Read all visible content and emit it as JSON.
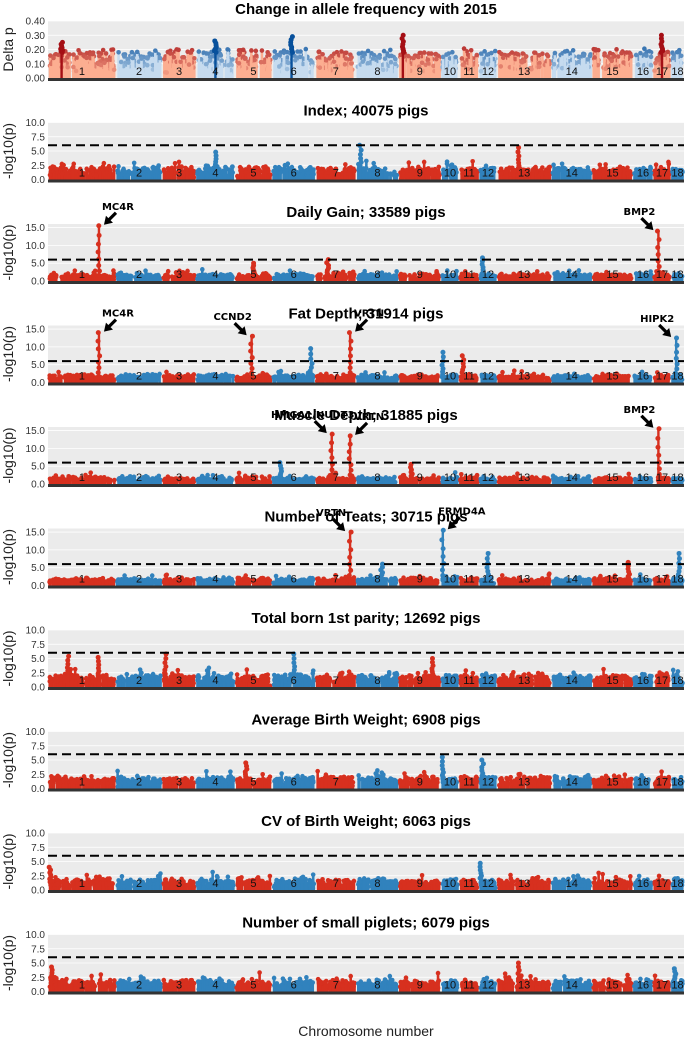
{
  "chart_data": [
    {
      "type": "manhattan",
      "title": "Change in allele frequency with 2015",
      "ylabel": "Delta p",
      "ylim": [
        0,
        0.4
      ],
      "yticks": [
        "0.00",
        "0.10",
        "0.20",
        "0.30",
        "0.40"
      ],
      "ytick_values": [
        0,
        0.1,
        0.2,
        0.3,
        0.4
      ],
      "base": 0.18,
      "spread": 0.06,
      "threshold": null,
      "style": "gradient",
      "peaks": [
        {
          "chr": 1,
          "pos": 0.2,
          "value": 0.25
        },
        {
          "chr": 4,
          "pos": 0.5,
          "value": 0.26
        },
        {
          "chr": 6,
          "pos": 0.45,
          "value": 0.29
        },
        {
          "chr": 9,
          "pos": 0.1,
          "value": 0.3
        },
        {
          "chr": 17,
          "pos": 0.5,
          "value": 0.3
        }
      ],
      "annotations": []
    },
    {
      "type": "manhattan",
      "title": "Index; 40075 pigs",
      "ylabel": "-log10(p)",
      "ylim": [
        0,
        10
      ],
      "yticks": [
        "0.0",
        "2.5",
        "5.0",
        "7.5",
        "10.0"
      ],
      "ytick_values": [
        0,
        2.5,
        5,
        7.5,
        10
      ],
      "base": 1.6,
      "spread": 1.5,
      "threshold": 6.0,
      "style": "plain",
      "peaks": [
        {
          "chr": 4,
          "pos": 0.5,
          "value": 4.8
        },
        {
          "chr": 8,
          "pos": 0.1,
          "value": 6.0
        },
        {
          "chr": 13,
          "pos": 0.4,
          "value": 5.6
        }
      ],
      "annotations": []
    },
    {
      "type": "manhattan",
      "title": "Daily Gain; 33589 pigs",
      "ylabel": "-log10(p)",
      "ylim": [
        0,
        16
      ],
      "yticks": [
        "0.0",
        "5.0",
        "10.0",
        "15.0"
      ],
      "ytick_values": [
        0,
        5,
        10,
        15
      ],
      "base": 1.5,
      "spread": 1.6,
      "threshold": 6.0,
      "style": "plain",
      "peaks": [
        {
          "chr": 1,
          "pos": 0.75,
          "value": 15.5
        },
        {
          "chr": 17,
          "pos": 0.3,
          "value": 14.0
        },
        {
          "chr": 7,
          "pos": 0.3,
          "value": 6.0
        },
        {
          "chr": 5,
          "pos": 0.5,
          "value": 5.0
        },
        {
          "chr": 12,
          "pos": 0.2,
          "value": 6.5
        }
      ],
      "annotations": [
        {
          "label": "MC4R",
          "chr": 1,
          "pos": 0.75,
          "value": 15.5,
          "dir": "right"
        },
        {
          "label": "BMP2",
          "chr": 17,
          "pos": 0.3,
          "value": 14.0,
          "dir": "left"
        }
      ]
    },
    {
      "type": "manhattan",
      "title": "Fat Depth; 31914 pigs",
      "ylabel": "-log10(p)",
      "ylim": [
        0,
        16
      ],
      "yticks": [
        "0.0",
        "5.0",
        "10.0",
        "15.0"
      ],
      "ytick_values": [
        0,
        5,
        10,
        15
      ],
      "base": 1.6,
      "spread": 1.7,
      "threshold": 6.0,
      "style": "plain",
      "peaks": [
        {
          "chr": 1,
          "pos": 0.75,
          "value": 14.0
        },
        {
          "chr": 5,
          "pos": 0.45,
          "value": 13.0
        },
        {
          "chr": 7,
          "pos": 0.85,
          "value": 14.0
        },
        {
          "chr": 18,
          "pos": 0.4,
          "value": 12.5
        },
        {
          "chr": 6,
          "pos": 0.9,
          "value": 9.5
        },
        {
          "chr": 10,
          "pos": 0.1,
          "value": 8.5
        },
        {
          "chr": 11,
          "pos": 0.2,
          "value": 7.5
        }
      ],
      "annotations": [
        {
          "label": "MC4R",
          "chr": 1,
          "pos": 0.75,
          "value": 14.0,
          "dir": "right"
        },
        {
          "label": "CCND2",
          "chr": 5,
          "pos": 0.45,
          "value": 13.0,
          "dir": "left"
        },
        {
          "label": "VRTN",
          "chr": 7,
          "pos": 0.85,
          "value": 14.0,
          "dir": "right"
        },
        {
          "label": "HIPK2",
          "chr": 18,
          "pos": 0.4,
          "value": 12.5,
          "dir": "left"
        }
      ]
    },
    {
      "type": "manhattan",
      "title": "Muscle Depth; 31885 pigs",
      "ylabel": "-log10(p)",
      "ylim": [
        0,
        16
      ],
      "yticks": [
        "0.0",
        "5.0",
        "10.0",
        "15.0"
      ],
      "ytick_values": [
        0,
        5,
        10,
        15
      ],
      "base": 1.4,
      "spread": 1.5,
      "threshold": 6.0,
      "style": "plain",
      "peaks": [
        {
          "chr": 7,
          "pos": 0.4,
          "value": 14.0
        },
        {
          "chr": 7,
          "pos": 0.85,
          "value": 13.5
        },
        {
          "chr": 17,
          "pos": 0.3,
          "value": 15.5
        },
        {
          "chr": 6,
          "pos": 0.2,
          "value": 6.0
        },
        {
          "chr": 9,
          "pos": 0.3,
          "value": 5.5
        }
      ],
      "annotations": [
        {
          "label": "HMGA1/NUDT3",
          "chr": 7,
          "pos": 0.4,
          "value": 14.0,
          "dir": "left"
        },
        {
          "label": "VRTN",
          "chr": 7,
          "pos": 0.85,
          "value": 13.5,
          "dir": "right"
        },
        {
          "label": "BMP2",
          "chr": 17,
          "pos": 0.3,
          "value": 15.5,
          "dir": "left"
        }
      ]
    },
    {
      "type": "manhattan",
      "title": "Number of Teats; 30715 pigs",
      "ylabel": "-log10(p)",
      "ylim": [
        0,
        16
      ],
      "yticks": [
        "0.0",
        "5.0",
        "10.0",
        "15.0"
      ],
      "ytick_values": [
        0,
        5,
        10,
        15
      ],
      "base": 1.5,
      "spread": 1.6,
      "threshold": 6.0,
      "style": "plain",
      "peaks": [
        {
          "chr": 7,
          "pos": 0.85,
          "value": 15.0
        },
        {
          "chr": 10,
          "pos": 0.1,
          "value": 15.5
        },
        {
          "chr": 12,
          "pos": 0.5,
          "value": 9.0
        },
        {
          "chr": 18,
          "pos": 0.6,
          "value": 9.0
        },
        {
          "chr": 15,
          "pos": 0.9,
          "value": 6.5
        },
        {
          "chr": 8,
          "pos": 0.6,
          "value": 6.0
        }
      ],
      "annotations": [
        {
          "label": "VRTN",
          "chr": 7,
          "pos": 0.85,
          "value": 15.0,
          "dir": "left"
        },
        {
          "label": "FRMD4A",
          "chr": 10,
          "pos": 0.1,
          "value": 15.5,
          "dir": "right"
        }
      ]
    },
    {
      "type": "manhattan",
      "title": "Total born 1st parity; 12692 pigs",
      "ylabel": "-log10(p)",
      "ylim": [
        0,
        10
      ],
      "yticks": [
        "0.0",
        "2.5",
        "5.0",
        "7.5",
        "10.0"
      ],
      "ytick_values": [
        0,
        2.5,
        5,
        7.5,
        10
      ],
      "base": 1.6,
      "spread": 1.6,
      "threshold": 6.0,
      "style": "plain",
      "peaks": [
        {
          "chr": 1,
          "pos": 0.3,
          "value": 5.4
        },
        {
          "chr": 1,
          "pos": 0.75,
          "value": 5.2
        },
        {
          "chr": 3,
          "pos": 0.1,
          "value": 5.8
        },
        {
          "chr": 6,
          "pos": 0.5,
          "value": 5.8
        },
        {
          "chr": 9,
          "pos": 0.8,
          "value": 5.0
        }
      ],
      "annotations": []
    },
    {
      "type": "manhattan",
      "title": "Average Birth Weight; 6908 pigs",
      "ylabel": "-log10(p)",
      "ylim": [
        0,
        10
      ],
      "yticks": [
        "0.0",
        "2.5",
        "5.0",
        "7.5",
        "10.0"
      ],
      "ytick_values": [
        0,
        2.5,
        5,
        7.5,
        10
      ],
      "base": 1.5,
      "spread": 1.5,
      "threshold": 6.0,
      "style": "plain",
      "peaks": [
        {
          "chr": 5,
          "pos": 0.3,
          "value": 4.5
        },
        {
          "chr": 10,
          "pos": 0.1,
          "value": 5.5
        },
        {
          "chr": 12,
          "pos": 0.2,
          "value": 5.0
        }
      ],
      "annotations": []
    },
    {
      "type": "manhattan",
      "title": "CV of Birth Weight; 6063 pigs",
      "ylabel": "-log10(p)",
      "ylim": [
        0,
        10
      ],
      "yticks": [
        "0.0",
        "2.5",
        "5.0",
        "7.5",
        "10.0"
      ],
      "ytick_values": [
        0,
        2.5,
        5,
        7.5,
        10
      ],
      "base": 1.4,
      "spread": 1.4,
      "threshold": 6.0,
      "style": "plain",
      "peaks": [
        {
          "chr": 1,
          "pos": 0.03,
          "value": 4.0
        },
        {
          "chr": 12,
          "pos": 0.1,
          "value": 4.7
        }
      ],
      "annotations": []
    },
    {
      "type": "manhattan",
      "title": "Number of small piglets; 6079 pigs",
      "ylabel": "-log10(p)",
      "ylim": [
        0,
        10
      ],
      "yticks": [
        "0.0",
        "2.5",
        "5.0",
        "7.5",
        "10.0"
      ],
      "ytick_values": [
        0,
        2.5,
        5,
        7.5,
        10
      ],
      "base": 1.5,
      "spread": 1.5,
      "threshold": 6.0,
      "style": "plain",
      "peaks": [
        {
          "chr": 1,
          "pos": 0.05,
          "value": 4.3
        },
        {
          "chr": 13,
          "pos": 0.4,
          "value": 5.0
        },
        {
          "chr": 18,
          "pos": 0.3,
          "value": 4.0
        }
      ],
      "annotations": []
    }
  ],
  "chromosomes": [
    {
      "label": "1",
      "length": 1.25
    },
    {
      "label": "2",
      "length": 0.85
    },
    {
      "label": "3",
      "length": 0.62
    },
    {
      "label": "4",
      "length": 0.72
    },
    {
      "label": "5",
      "length": 0.68
    },
    {
      "label": "6",
      "length": 0.8
    },
    {
      "label": "7",
      "length": 0.75
    },
    {
      "label": "8",
      "length": 0.78
    },
    {
      "label": "9",
      "length": 0.78
    },
    {
      "label": "10",
      "length": 0.33
    },
    {
      "label": "11",
      "length": 0.37
    },
    {
      "label": "12",
      "length": 0.33
    },
    {
      "label": "13",
      "length": 1.0
    },
    {
      "label": "14",
      "length": 0.75
    },
    {
      "label": "15",
      "length": 0.75
    },
    {
      "label": "16",
      "length": 0.37
    },
    {
      "label": "17",
      "length": 0.33
    },
    {
      "label": "18",
      "length": 0.24
    }
  ],
  "colors": {
    "odd": "#d7301f",
    "even": "#3182bd",
    "odd_light": "#fcae91",
    "odd_dark": "#a50f15",
    "even_light": "#c6dbef",
    "even_dark": "#08519c",
    "panel_bg": "#ebebeb",
    "grid": "#ffffff",
    "threshold_line": "#000000"
  },
  "xlabel": "Chromosome number"
}
